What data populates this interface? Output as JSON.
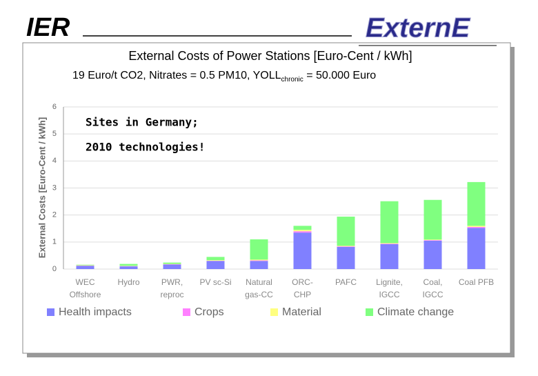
{
  "header": {
    "left_logo": "IER",
    "right_logo": "ExternE"
  },
  "chart_data": {
    "type": "stacked_bar",
    "title": "External Costs of Power Stations [Euro-Cent / kWh]",
    "subtitle": [
      "19 Euro/t CO2, Nitrates = 0.5 PM10, YOLL",
      "chronic",
      " = 50.000 Euro"
    ],
    "y_label": "External Costs [Euro-Cent / kWh]",
    "annotations": [
      "Sites in Germany;",
      "2010 technologies!"
    ],
    "categories": [
      [
        "WEC",
        "Offshore"
      ],
      [
        "Hydro"
      ],
      [
        "PWR,",
        "reproc"
      ],
      [
        "PV sc-Si"
      ],
      [
        "Natural",
        "gas-CC"
      ],
      [
        "ORC-",
        "CHP"
      ],
      [
        "PAFC"
      ],
      [
        "Lignite,",
        "IGCC"
      ],
      [
        "Coal,",
        "IGCC"
      ],
      [
        "Coal PFB"
      ]
    ],
    "series": [
      {
        "name": "Health impacts",
        "color": "#8080ff",
        "values": [
          0.12,
          0.1,
          0.17,
          0.3,
          0.3,
          1.35,
          0.82,
          0.92,
          1.05,
          1.52
        ]
      },
      {
        "name": "Crops",
        "color": "#ff80ff",
        "values": [
          0.01,
          0.01,
          0.01,
          0.01,
          0.02,
          0.05,
          0.02,
          0.02,
          0.02,
          0.04
        ]
      },
      {
        "name": "Material",
        "color": "#ffff80",
        "values": [
          0.01,
          0.01,
          0.01,
          0.02,
          0.03,
          0.05,
          0.02,
          0.02,
          0.02,
          0.04
        ]
      },
      {
        "name": "Climate change",
        "color": "#80ff80",
        "values": [
          0.02,
          0.07,
          0.05,
          0.12,
          0.75,
          0.15,
          1.08,
          1.55,
          1.47,
          1.62
        ]
      }
    ],
    "ylim": [
      0,
      6
    ],
    "yticks": [
      0,
      1,
      2,
      3,
      4,
      5,
      6
    ],
    "grid": true,
    "legend": "bottom"
  }
}
